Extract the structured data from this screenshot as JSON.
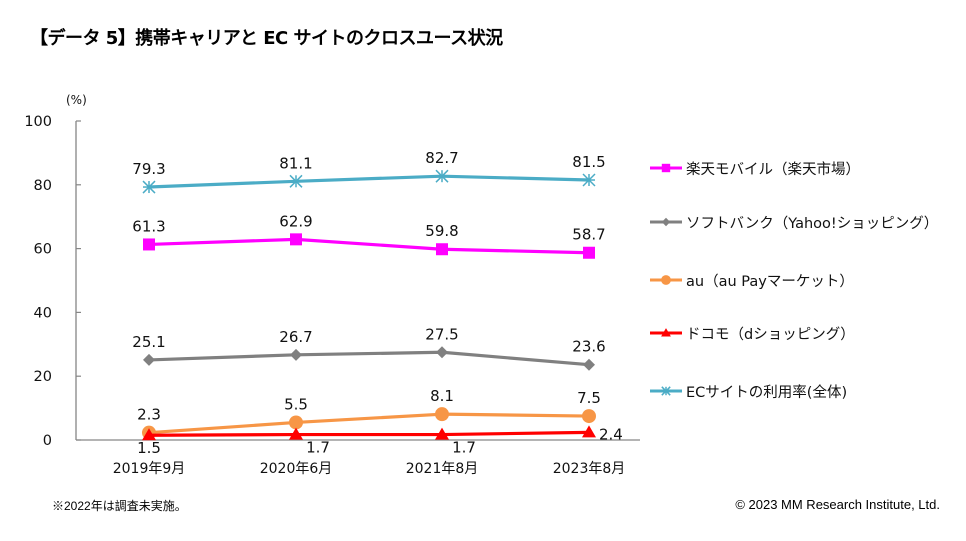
{
  "title": "【データ 5】携帯キャリアと EC サイトのクロスユース状況",
  "footnote": "※2022年は調査未実施。",
  "copyright": "© 2023 MM Research Institute, Ltd.",
  "chart_data": {
    "type": "line",
    "title": "【データ 5】携帯キャリアと EC サイトのクロスユース状況",
    "xlabel": "",
    "ylabel": "(%)",
    "ylim": [
      0,
      100
    ],
    "yticks": [
      0,
      20,
      40,
      60,
      80,
      100
    ],
    "ytick_labels": [
      "0",
      "20",
      "40",
      "60",
      "80",
      "100"
    ],
    "categories": [
      "2019年9月",
      "2020年6月",
      "2021年8月",
      "2023年8月"
    ],
    "grid": false,
    "legend_position": "right",
    "series": [
      {
        "name": "楽天モバイル（楽天市場）",
        "color": "#FF00FF",
        "marker": "square",
        "values": [
          61.3,
          62.9,
          59.8,
          58.7
        ],
        "labels": [
          "61.3",
          "62.9",
          "59.8",
          "58.7"
        ],
        "label_pos": "above"
      },
      {
        "name": "ソフトバンク（Yahoo!ショッピング）",
        "color": "#808080",
        "marker": "diamond",
        "values": [
          25.1,
          26.7,
          27.5,
          23.6
        ],
        "labels": [
          "25.1",
          "26.7",
          "27.5",
          "23.6"
        ],
        "label_pos": "above"
      },
      {
        "name": "au（au Payマーケット）",
        "color": "#F79646",
        "marker": "circle",
        "values": [
          2.3,
          5.5,
          8.1,
          7.5
        ],
        "labels": [
          "2.3",
          "5.5",
          "8.1",
          "7.5"
        ],
        "label_pos": "above"
      },
      {
        "name": "ドコモ（dショッピング）",
        "color": "#FF0000",
        "marker": "triangle",
        "values": [
          1.5,
          1.7,
          1.7,
          2.4
        ],
        "labels": [
          "1.5",
          "1.7",
          "1.7",
          "2.4"
        ],
        "label_pos": [
          "below",
          "below-right",
          "below-right",
          "right"
        ]
      },
      {
        "name": "ECサイトの利用率(全体)",
        "color": "#4BACC6",
        "marker": "asterisk",
        "values": [
          79.3,
          81.1,
          82.7,
          81.5
        ],
        "labels": [
          "79.3",
          "81.1",
          "82.7",
          "81.5"
        ],
        "label_pos": "above"
      }
    ]
  }
}
